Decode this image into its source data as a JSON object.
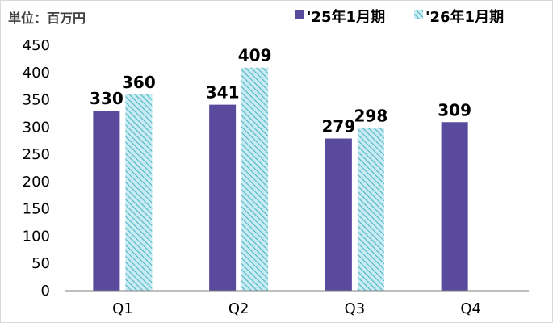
{
  "unit_label": "単位：百万円",
  "colors": {
    "series1": "#5a4a9e",
    "series2_fill": "#c9ecf2",
    "series2_hatch": "#4fb3c6",
    "axis": "#7f7f7f"
  },
  "chart_data": {
    "type": "bar",
    "categories": [
      "Q1",
      "Q2",
      "Q3",
      "Q4"
    ],
    "series": [
      {
        "name": "'25年1月期",
        "values": [
          330,
          341,
          279,
          309
        ]
      },
      {
        "name": "'26年1月期",
        "values": [
          360,
          409,
          298,
          null
        ]
      }
    ],
    "ylim": [
      0,
      450
    ],
    "yticks": [
      0,
      50,
      100,
      150,
      200,
      250,
      300,
      350,
      400,
      450
    ],
    "grid": false,
    "legend_position": "top-right",
    "data_labels": true
  }
}
